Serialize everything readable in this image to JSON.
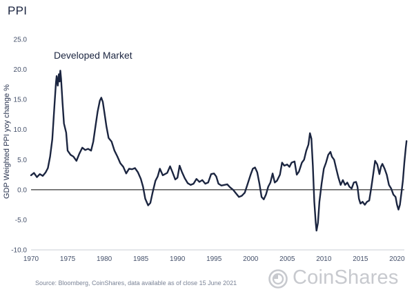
{
  "page": {
    "title": "PPI",
    "source": "Source: Bloomberg, CoinShares, data available as of close 15 June 2021"
  },
  "logo": {
    "text": "CoinShares",
    "icon": "coinshares-logo-icon"
  },
  "colors": {
    "line": "#1b2540",
    "zero_line": "#000000",
    "text": "#44506a",
    "logo": "#c7c9ce"
  },
  "chart_data": {
    "type": "line",
    "title": "",
    "annotation": "Developed Market",
    "ylabel": "GDP Weighted PPI yoy change %",
    "xlabel": "",
    "xlim": [
      1970,
      2021
    ],
    "ylim": [
      -10,
      25
    ],
    "grid": false,
    "x_ticks": [
      "1970",
      "1975",
      "1980",
      "1985",
      "1990",
      "1995",
      "2000",
      "2005",
      "2010",
      "2015",
      "2020"
    ],
    "y_ticks": [
      "25.0",
      "20.0",
      "15.0",
      "10.0",
      "5.0",
      "0.0",
      "-5.0",
      "-10.0"
    ],
    "series": [
      {
        "values": [
          [
            1970.0,
            2.4
          ],
          [
            1970.4,
            2.8
          ],
          [
            1970.8,
            2.1
          ],
          [
            1971.2,
            2.6
          ],
          [
            1971.6,
            2.3
          ],
          [
            1972.0,
            2.9
          ],
          [
            1972.3,
            3.6
          ],
          [
            1972.6,
            5.5
          ],
          [
            1972.9,
            8.4
          ],
          [
            1973.2,
            14.0
          ],
          [
            1973.4,
            17.8
          ],
          [
            1973.5,
            18.9
          ],
          [
            1973.65,
            17.3
          ],
          [
            1973.8,
            19.2
          ],
          [
            1973.9,
            18.0
          ],
          [
            1974.0,
            19.8
          ],
          [
            1974.1,
            18.5
          ],
          [
            1974.3,
            14.5
          ],
          [
            1974.5,
            11.0
          ],
          [
            1974.8,
            9.5
          ],
          [
            1975.0,
            6.5
          ],
          [
            1975.4,
            5.8
          ],
          [
            1975.8,
            5.5
          ],
          [
            1976.2,
            4.8
          ],
          [
            1976.6,
            6.0
          ],
          [
            1977.0,
            7.0
          ],
          [
            1977.4,
            6.6
          ],
          [
            1977.8,
            6.8
          ],
          [
            1978.2,
            6.5
          ],
          [
            1978.5,
            8.0
          ],
          [
            1978.8,
            10.5
          ],
          [
            1979.1,
            13.0
          ],
          [
            1979.4,
            14.8
          ],
          [
            1979.6,
            15.3
          ],
          [
            1979.8,
            14.6
          ],
          [
            1980.0,
            13.0
          ],
          [
            1980.3,
            10.5
          ],
          [
            1980.6,
            8.6
          ],
          [
            1981.0,
            8.0
          ],
          [
            1981.4,
            6.5
          ],
          [
            1981.8,
            5.5
          ],
          [
            1982.2,
            4.4
          ],
          [
            1982.6,
            3.8
          ],
          [
            1983.0,
            2.7
          ],
          [
            1983.4,
            3.5
          ],
          [
            1983.8,
            3.4
          ],
          [
            1984.2,
            3.6
          ],
          [
            1984.6,
            2.9
          ],
          [
            1985.0,
            1.8
          ],
          [
            1985.3,
            0.5
          ],
          [
            1985.6,
            -1.5
          ],
          [
            1986.0,
            -2.6
          ],
          [
            1986.3,
            -2.2
          ],
          [
            1986.6,
            -0.5
          ],
          [
            1987.0,
            1.5
          ],
          [
            1987.3,
            2.2
          ],
          [
            1987.6,
            3.5
          ],
          [
            1988.0,
            2.4
          ],
          [
            1988.3,
            2.6
          ],
          [
            1988.6,
            2.8
          ],
          [
            1989.0,
            3.9
          ],
          [
            1989.3,
            3.0
          ],
          [
            1989.7,
            1.7
          ],
          [
            1990.0,
            2.0
          ],
          [
            1990.3,
            4.0
          ],
          [
            1990.6,
            3.0
          ],
          [
            1991.0,
            1.9
          ],
          [
            1991.4,
            1.1
          ],
          [
            1991.8,
            0.8
          ],
          [
            1992.2,
            1.0
          ],
          [
            1992.6,
            1.8
          ],
          [
            1993.0,
            1.3
          ],
          [
            1993.4,
            1.6
          ],
          [
            1993.8,
            1.0
          ],
          [
            1994.2,
            1.2
          ],
          [
            1994.6,
            2.6
          ],
          [
            1995.0,
            2.7
          ],
          [
            1995.3,
            2.2
          ],
          [
            1995.6,
            1.0
          ],
          [
            1996.0,
            0.7
          ],
          [
            1996.4,
            0.8
          ],
          [
            1996.8,
            0.9
          ],
          [
            1997.2,
            0.4
          ],
          [
            1997.6,
            0.0
          ],
          [
            1998.0,
            -0.6
          ],
          [
            1998.4,
            -1.2
          ],
          [
            1998.8,
            -1.0
          ],
          [
            1999.2,
            -0.5
          ],
          [
            1999.6,
            1.0
          ],
          [
            2000.0,
            2.5
          ],
          [
            2000.3,
            3.5
          ],
          [
            2000.6,
            3.7
          ],
          [
            2000.9,
            2.9
          ],
          [
            2001.2,
            1.0
          ],
          [
            2001.5,
            -1.2
          ],
          [
            2001.8,
            -1.6
          ],
          [
            2002.1,
            -0.8
          ],
          [
            2002.4,
            0.5
          ],
          [
            2002.7,
            1.2
          ],
          [
            2003.0,
            2.7
          ],
          [
            2003.3,
            1.2
          ],
          [
            2003.6,
            1.5
          ],
          [
            2004.0,
            2.5
          ],
          [
            2004.3,
            4.5
          ],
          [
            2004.6,
            4.0
          ],
          [
            2005.0,
            4.2
          ],
          [
            2005.3,
            3.8
          ],
          [
            2005.6,
            4.5
          ],
          [
            2006.0,
            4.7
          ],
          [
            2006.3,
            2.5
          ],
          [
            2006.6,
            3.0
          ],
          [
            2007.0,
            4.5
          ],
          [
            2007.3,
            5.0
          ],
          [
            2007.6,
            6.5
          ],
          [
            2007.9,
            7.5
          ],
          [
            2008.1,
            9.4
          ],
          [
            2008.3,
            8.5
          ],
          [
            2008.5,
            4.0
          ],
          [
            2008.7,
            -2.0
          ],
          [
            2008.9,
            -5.5
          ],
          [
            2009.0,
            -6.8
          ],
          [
            2009.2,
            -5.5
          ],
          [
            2009.4,
            -2.0
          ],
          [
            2009.7,
            1.0
          ],
          [
            2010.0,
            3.5
          ],
          [
            2010.3,
            4.5
          ],
          [
            2010.6,
            5.8
          ],
          [
            2010.9,
            6.3
          ],
          [
            2011.1,
            5.5
          ],
          [
            2011.4,
            5.0
          ],
          [
            2011.7,
            3.5
          ],
          [
            2012.0,
            2.0
          ],
          [
            2012.3,
            0.8
          ],
          [
            2012.6,
            1.6
          ],
          [
            2012.9,
            0.8
          ],
          [
            2013.2,
            1.2
          ],
          [
            2013.5,
            0.5
          ],
          [
            2013.8,
            0.2
          ],
          [
            2014.1,
            1.2
          ],
          [
            2014.4,
            1.3
          ],
          [
            2014.6,
            0.5
          ],
          [
            2014.8,
            -1.5
          ],
          [
            2015.0,
            -2.3
          ],
          [
            2015.3,
            -2.0
          ],
          [
            2015.6,
            -2.5
          ],
          [
            2015.9,
            -2.0
          ],
          [
            2016.2,
            -1.8
          ],
          [
            2016.5,
            0.5
          ],
          [
            2016.8,
            3.0
          ],
          [
            2017.0,
            4.8
          ],
          [
            2017.3,
            4.2
          ],
          [
            2017.6,
            2.6
          ],
          [
            2017.8,
            3.8
          ],
          [
            2018.0,
            4.3
          ],
          [
            2018.3,
            3.5
          ],
          [
            2018.6,
            2.5
          ],
          [
            2018.9,
            0.8
          ],
          [
            2019.2,
            0.2
          ],
          [
            2019.5,
            -0.8
          ],
          [
            2019.8,
            -1.2
          ],
          [
            2020.0,
            -2.5
          ],
          [
            2020.2,
            -3.3
          ],
          [
            2020.4,
            -2.5
          ],
          [
            2020.6,
            -0.5
          ],
          [
            2020.8,
            1.5
          ],
          [
            2021.0,
            4.5
          ],
          [
            2021.2,
            7.0
          ],
          [
            2021.3,
            8.1
          ]
        ]
      }
    ]
  }
}
